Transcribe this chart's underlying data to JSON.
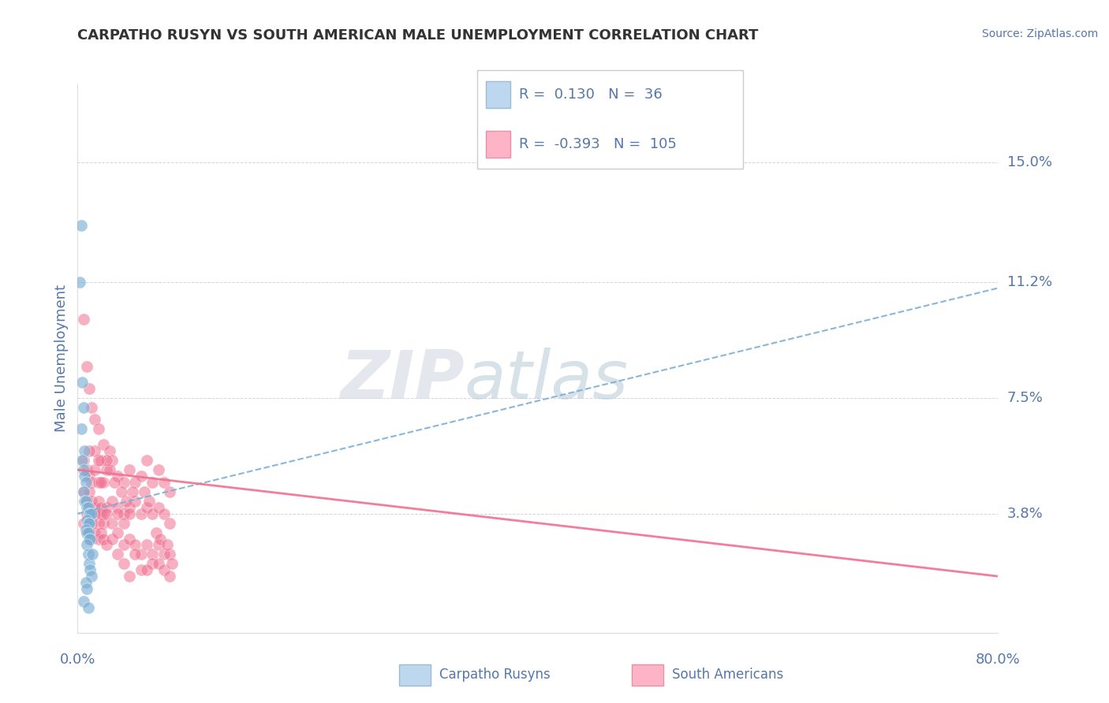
{
  "title": "CARPATHO RUSYN VS SOUTH AMERICAN MALE UNEMPLOYMENT CORRELATION CHART",
  "source": "Source: ZipAtlas.com",
  "ylabel": "Male Unemployment",
  "xlim": [
    0.0,
    0.8
  ],
  "ylim": [
    0.0,
    0.175
  ],
  "ytick_positions": [
    0.038,
    0.075,
    0.112,
    0.15
  ],
  "ytick_labels": [
    "3.8%",
    "7.5%",
    "11.2%",
    "15.0%"
  ],
  "legend_blue_r": "0.130",
  "legend_blue_n": "36",
  "legend_pink_r": "-0.393",
  "legend_pink_n": "105",
  "blue_color": "#7BAFD4",
  "pink_color": "#F07090",
  "blue_scatter": [
    [
      0.003,
      0.13
    ],
    [
      0.002,
      0.112
    ],
    [
      0.004,
      0.08
    ],
    [
      0.005,
      0.072
    ],
    [
      0.003,
      0.065
    ],
    [
      0.006,
      0.058
    ],
    [
      0.004,
      0.055
    ],
    [
      0.005,
      0.052
    ],
    [
      0.006,
      0.05
    ],
    [
      0.007,
      0.048
    ],
    [
      0.005,
      0.045
    ],
    [
      0.006,
      0.042
    ],
    [
      0.007,
      0.042
    ],
    [
      0.008,
      0.04
    ],
    [
      0.009,
      0.04
    ],
    [
      0.01,
      0.038
    ],
    [
      0.011,
      0.038
    ],
    [
      0.012,
      0.038
    ],
    [
      0.008,
      0.036
    ],
    [
      0.009,
      0.035
    ],
    [
      0.01,
      0.035
    ],
    [
      0.007,
      0.033
    ],
    [
      0.008,
      0.032
    ],
    [
      0.009,
      0.032
    ],
    [
      0.01,
      0.03
    ],
    [
      0.011,
      0.03
    ],
    [
      0.008,
      0.028
    ],
    [
      0.009,
      0.025
    ],
    [
      0.01,
      0.022
    ],
    [
      0.011,
      0.02
    ],
    [
      0.012,
      0.018
    ],
    [
      0.007,
      0.016
    ],
    [
      0.008,
      0.014
    ],
    [
      0.013,
      0.025
    ],
    [
      0.005,
      0.01
    ],
    [
      0.009,
      0.008
    ]
  ],
  "pink_scatter": [
    [
      0.005,
      0.1
    ],
    [
      0.008,
      0.085
    ],
    [
      0.01,
      0.078
    ],
    [
      0.012,
      0.072
    ],
    [
      0.015,
      0.068
    ],
    [
      0.018,
      0.065
    ],
    [
      0.022,
      0.06
    ],
    [
      0.028,
      0.058
    ],
    [
      0.005,
      0.055
    ],
    [
      0.008,
      0.052
    ],
    [
      0.01,
      0.05
    ],
    [
      0.012,
      0.048
    ],
    [
      0.015,
      0.052
    ],
    [
      0.018,
      0.048
    ],
    [
      0.02,
      0.055
    ],
    [
      0.022,
      0.048
    ],
    [
      0.025,
      0.052
    ],
    [
      0.03,
      0.055
    ],
    [
      0.035,
      0.05
    ],
    [
      0.04,
      0.048
    ],
    [
      0.045,
      0.052
    ],
    [
      0.05,
      0.048
    ],
    [
      0.055,
      0.05
    ],
    [
      0.06,
      0.055
    ],
    [
      0.065,
      0.048
    ],
    [
      0.07,
      0.052
    ],
    [
      0.075,
      0.048
    ],
    [
      0.08,
      0.045
    ],
    [
      0.005,
      0.045
    ],
    [
      0.008,
      0.042
    ],
    [
      0.01,
      0.045
    ],
    [
      0.012,
      0.042
    ],
    [
      0.015,
      0.04
    ],
    [
      0.018,
      0.042
    ],
    [
      0.02,
      0.04
    ],
    [
      0.022,
      0.038
    ],
    [
      0.025,
      0.04
    ],
    [
      0.03,
      0.042
    ],
    [
      0.035,
      0.04
    ],
    [
      0.04,
      0.038
    ],
    [
      0.045,
      0.04
    ],
    [
      0.05,
      0.042
    ],
    [
      0.055,
      0.038
    ],
    [
      0.06,
      0.04
    ],
    [
      0.065,
      0.038
    ],
    [
      0.07,
      0.04
    ],
    [
      0.075,
      0.038
    ],
    [
      0.08,
      0.035
    ],
    [
      0.008,
      0.038
    ],
    [
      0.01,
      0.036
    ],
    [
      0.012,
      0.035
    ],
    [
      0.015,
      0.038
    ],
    [
      0.018,
      0.035
    ],
    [
      0.02,
      0.038
    ],
    [
      0.022,
      0.035
    ],
    [
      0.025,
      0.038
    ],
    [
      0.03,
      0.035
    ],
    [
      0.035,
      0.038
    ],
    [
      0.04,
      0.035
    ],
    [
      0.045,
      0.038
    ],
    [
      0.005,
      0.035
    ],
    [
      0.008,
      0.032
    ],
    [
      0.01,
      0.032
    ],
    [
      0.012,
      0.03
    ],
    [
      0.015,
      0.032
    ],
    [
      0.018,
      0.03
    ],
    [
      0.02,
      0.032
    ],
    [
      0.022,
      0.03
    ],
    [
      0.025,
      0.028
    ],
    [
      0.03,
      0.03
    ],
    [
      0.035,
      0.032
    ],
    [
      0.04,
      0.028
    ],
    [
      0.045,
      0.03
    ],
    [
      0.05,
      0.028
    ],
    [
      0.055,
      0.025
    ],
    [
      0.06,
      0.028
    ],
    [
      0.065,
      0.025
    ],
    [
      0.065,
      0.022
    ],
    [
      0.07,
      0.028
    ],
    [
      0.075,
      0.025
    ],
    [
      0.035,
      0.025
    ],
    [
      0.04,
      0.022
    ],
    [
      0.05,
      0.025
    ],
    [
      0.055,
      0.02
    ],
    [
      0.045,
      0.018
    ],
    [
      0.06,
      0.02
    ],
    [
      0.07,
      0.022
    ],
    [
      0.08,
      0.025
    ],
    [
      0.075,
      0.02
    ],
    [
      0.08,
      0.018
    ],
    [
      0.068,
      0.032
    ],
    [
      0.072,
      0.03
    ],
    [
      0.062,
      0.042
    ],
    [
      0.058,
      0.045
    ],
    [
      0.048,
      0.045
    ],
    [
      0.042,
      0.042
    ],
    [
      0.038,
      0.045
    ],
    [
      0.032,
      0.048
    ],
    [
      0.028,
      0.052
    ],
    [
      0.025,
      0.055
    ],
    [
      0.02,
      0.048
    ],
    [
      0.018,
      0.055
    ],
    [
      0.015,
      0.058
    ],
    [
      0.078,
      0.028
    ],
    [
      0.082,
      0.022
    ],
    [
      0.01,
      0.058
    ]
  ],
  "blue_trend": [
    0.0,
    0.8,
    0.038,
    0.11
  ],
  "pink_trend": [
    0.0,
    0.8,
    0.052,
    0.018
  ],
  "grid_color": "#C8C8DC",
  "bg_color": "#FFFFFF",
  "title_color": "#333333",
  "axis_label_color": "#5577AA",
  "tick_label_color": "#5577AA",
  "legend_box_blue_fill": "#BDD7EE",
  "legend_box_pink_fill": "#FFB3C6",
  "watermark_zip_color": "#CCCCDD",
  "watermark_atlas_color": "#AABBCC"
}
